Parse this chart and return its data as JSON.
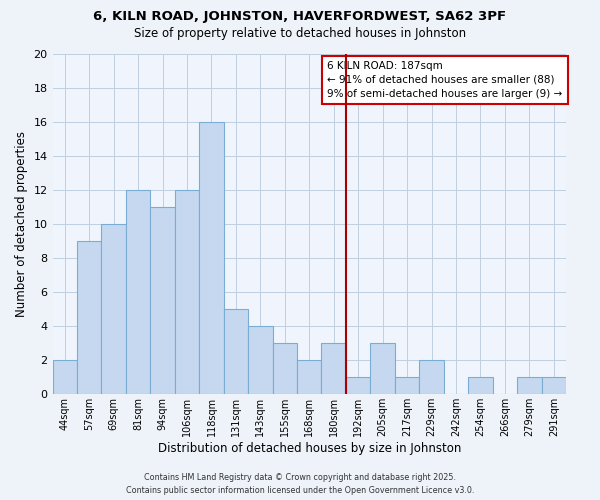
{
  "title_line1": "6, KILN ROAD, JOHNSTON, HAVERFORDWEST, SA62 3PF",
  "title_line2": "Size of property relative to detached houses in Johnston",
  "xlabel": "Distribution of detached houses by size in Johnston",
  "ylabel": "Number of detached properties",
  "bar_labels": [
    "44sqm",
    "57sqm",
    "69sqm",
    "81sqm",
    "94sqm",
    "106sqm",
    "118sqm",
    "131sqm",
    "143sqm",
    "155sqm",
    "168sqm",
    "180sqm",
    "192sqm",
    "205sqm",
    "217sqm",
    "229sqm",
    "242sqm",
    "254sqm",
    "266sqm",
    "279sqm",
    "291sqm"
  ],
  "bar_values": [
    2,
    9,
    10,
    12,
    11,
    12,
    16,
    5,
    4,
    3,
    2,
    3,
    1,
    3,
    1,
    2,
    0,
    1,
    0,
    1,
    1
  ],
  "bar_color": "#c5d8f0",
  "bar_edge_color": "#7aadd4",
  "grid_color": "#c0cfe0",
  "background_color": "#eef3fa",
  "plot_bg_color": "#f0f5fd",
  "vline_x_index": 11,
  "vline_color": "#aa0000",
  "annotation_title": "6 KILN ROAD: 187sqm",
  "annotation_line1": "← 91% of detached houses are smaller (88)",
  "annotation_line2": "9% of semi-detached houses are larger (9) →",
  "annotation_box_color": "#ffffff",
  "annotation_border_color": "#cc0000",
  "ylim": [
    0,
    20
  ],
  "yticks": [
    0,
    2,
    4,
    6,
    8,
    10,
    12,
    14,
    16,
    18,
    20
  ],
  "footer_line1": "Contains HM Land Registry data © Crown copyright and database right 2025.",
  "footer_line2": "Contains public sector information licensed under the Open Government Licence v3.0."
}
